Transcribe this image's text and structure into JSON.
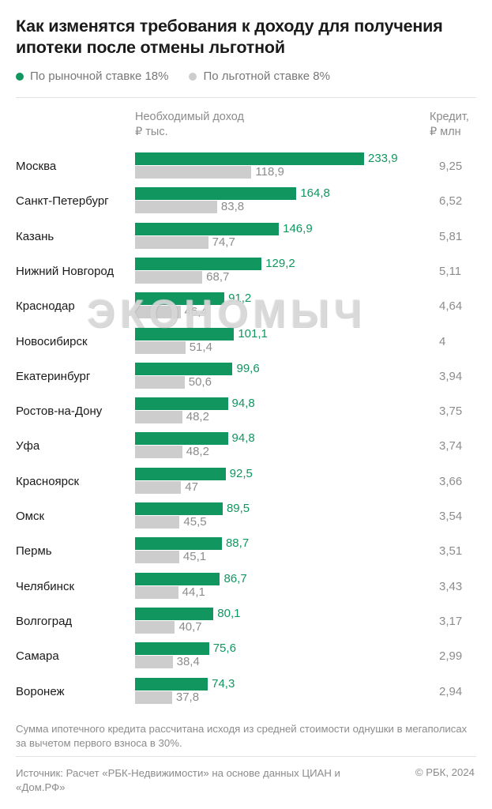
{
  "title": "Как изменятся требования к доходу для получения ипотеки после отмены льготной",
  "legend": [
    {
      "label": "По рыночной ставке 18%",
      "color": "#11965f"
    },
    {
      "label": "По льготной ставке 8%",
      "color": "#cdcdcd"
    }
  ],
  "column_income": "Необходимый доход\n₽ тыс.",
  "column_credit": "Кредит,\n₽ млн",
  "watermark": "ЭКОНОМЫЧ",
  "chart_data": {
    "type": "bar",
    "orientation": "horizontal",
    "categories": [
      "Москва",
      "Санкт-Петербург",
      "Казань",
      "Нижний Новгород",
      "Краснодар",
      "Новосибирск",
      "Екатеринбург",
      "Ростов-на-Дону",
      "Уфа",
      "Красноярск",
      "Омск",
      "Пермь",
      "Челябинск",
      "Волгоград",
      "Самара",
      "Воронеж"
    ],
    "series": [
      {
        "name": "По рыночной ставке 18%",
        "values": [
          233.9,
          164.8,
          146.9,
          129.2,
          91.2,
          101.1,
          99.6,
          94.8,
          94.8,
          92.5,
          89.5,
          88.7,
          86.7,
          80.1,
          75.6,
          74.3
        ],
        "labels": [
          "233,9",
          "164,8",
          "146,9",
          "129,2",
          "91,2",
          "101,1",
          "99,6",
          "94,8",
          "94,8",
          "92,5",
          "89,5",
          "88,7",
          "86,7",
          "80,1",
          "75,6",
          "74,3"
        ]
      },
      {
        "name": "По льготной ставке 8%",
        "values": [
          118.9,
          83.8,
          74.7,
          68.7,
          46.4,
          51.4,
          50.6,
          48.2,
          48.2,
          47,
          45.5,
          45.1,
          44.1,
          40.7,
          38.4,
          37.8
        ],
        "labels": [
          "118,9",
          "83,8",
          "74,7",
          "68,7",
          "46,4",
          "51,4",
          "50,6",
          "48,2",
          "48,2",
          "47",
          "45,5",
          "45,1",
          "44,1",
          "40,7",
          "38,4",
          "37,8"
        ]
      }
    ],
    "credit_labels": [
      "9,25",
      "6,52",
      "5,81",
      "5,11",
      "4,64",
      "4",
      "3,94",
      "3,75",
      "3,74",
      "3,66",
      "3,54",
      "3,51",
      "3,43",
      "3,17",
      "2,99",
      "2,94"
    ],
    "xlim": [
      0,
      233.9
    ],
    "grid": false,
    "legend_position": "top-left"
  },
  "note": "Сумма ипотечного кредита рассчитана исходя из средней стоимости однушки в мегаполисах за вычетом первого взноса в 30%.",
  "source": "Источник: Расчет «РБК-Недвижимости» на основе данных ЦИАН и «Дом.РФ»",
  "copyright": "© РБК, 2024"
}
